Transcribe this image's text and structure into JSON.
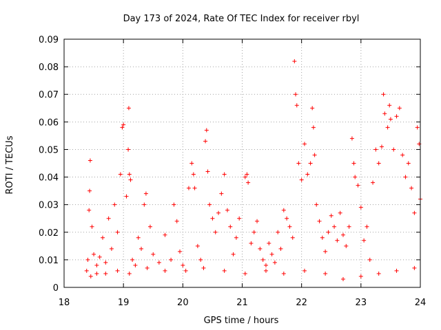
{
  "chart_data": {
    "type": "scatter",
    "title": "Day 173 of 2024, Rate Of TEC Index for receiver rbyl",
    "xlabel": "GPS time / hours",
    "ylabel": "ROTI / TECUs",
    "xlim": [
      18,
      24
    ],
    "ylim": [
      0,
      0.09
    ],
    "xticks": [
      "18",
      "19",
      "20",
      "21",
      "22",
      "23",
      "24"
    ],
    "yticks": [
      "0",
      "0.01",
      "0.02",
      "0.03",
      "0.04",
      "0.05",
      "0.06",
      "0.07",
      "0.08",
      "0.09"
    ],
    "grid": true,
    "marker": "plus",
    "color": "#ff0000",
    "series": [
      {
        "name": "ROTI",
        "points": [
          [
            18.38,
            0.006
          ],
          [
            18.4,
            0.01
          ],
          [
            18.42,
            0.028
          ],
          [
            18.43,
            0.035
          ],
          [
            18.44,
            0.046
          ],
          [
            18.47,
            0.022
          ],
          [
            18.5,
            0.012
          ],
          [
            18.55,
            0.008
          ],
          [
            18.6,
            0.011
          ],
          [
            18.65,
            0.018
          ],
          [
            18.7,
            0.009
          ],
          [
            18.75,
            0.025
          ],
          [
            18.8,
            0.014
          ],
          [
            18.85,
            0.03
          ],
          [
            18.9,
            0.02
          ],
          [
            18.95,
            0.041
          ],
          [
            18.98,
            0.058
          ],
          [
            19.0,
            0.059
          ],
          [
            19.05,
            0.033
          ],
          [
            19.08,
            0.05
          ],
          [
            19.09,
            0.065
          ],
          [
            19.1,
            0.041
          ],
          [
            19.12,
            0.039
          ],
          [
            19.15,
            0.01
          ],
          [
            19.2,
            0.008
          ],
          [
            19.25,
            0.018
          ],
          [
            19.3,
            0.014
          ],
          [
            19.35,
            0.03
          ],
          [
            19.38,
            0.034
          ],
          [
            19.45,
            0.022
          ],
          [
            19.5,
            0.012
          ],
          [
            19.6,
            0.009
          ],
          [
            19.7,
            0.019
          ],
          [
            19.8,
            0.01
          ],
          [
            19.85,
            0.03
          ],
          [
            19.9,
            0.024
          ],
          [
            19.95,
            0.013
          ],
          [
            20.0,
            0.008
          ],
          [
            20.1,
            0.036
          ],
          [
            20.15,
            0.045
          ],
          [
            20.18,
            0.041
          ],
          [
            20.2,
            0.036
          ],
          [
            20.25,
            0.015
          ],
          [
            20.3,
            0.01
          ],
          [
            20.38,
            0.053
          ],
          [
            20.4,
            0.057
          ],
          [
            20.42,
            0.042
          ],
          [
            20.45,
            0.03
          ],
          [
            20.5,
            0.025
          ],
          [
            20.55,
            0.02
          ],
          [
            20.6,
            0.027
          ],
          [
            20.65,
            0.034
          ],
          [
            20.7,
            0.041
          ],
          [
            20.75,
            0.028
          ],
          [
            20.8,
            0.022
          ],
          [
            20.85,
            0.012
          ],
          [
            20.9,
            0.018
          ],
          [
            20.95,
            0.025
          ],
          [
            21.05,
            0.04
          ],
          [
            21.08,
            0.041
          ],
          [
            21.1,
            0.038
          ],
          [
            21.15,
            0.016
          ],
          [
            21.2,
            0.02
          ],
          [
            21.25,
            0.024
          ],
          [
            21.3,
            0.014
          ],
          [
            21.35,
            0.01
          ],
          [
            21.4,
            0.008
          ],
          [
            21.45,
            0.016
          ],
          [
            21.5,
            0.012
          ],
          [
            21.55,
            0.009
          ],
          [
            21.6,
            0.02
          ],
          [
            21.65,
            0.014
          ],
          [
            21.7,
            0.028
          ],
          [
            21.75,
            0.025
          ],
          [
            21.8,
            0.022
          ],
          [
            21.85,
            0.018
          ],
          [
            21.88,
            0.082
          ],
          [
            21.9,
            0.07
          ],
          [
            21.92,
            0.066
          ],
          [
            21.95,
            0.045
          ],
          [
            22.0,
            0.039
          ],
          [
            22.05,
            0.052
          ],
          [
            22.1,
            0.041
          ],
          [
            22.15,
            0.045
          ],
          [
            22.18,
            0.065
          ],
          [
            22.2,
            0.058
          ],
          [
            22.22,
            0.048
          ],
          [
            22.25,
            0.03
          ],
          [
            22.3,
            0.024
          ],
          [
            22.35,
            0.018
          ],
          [
            22.4,
            0.013
          ],
          [
            22.45,
            0.02
          ],
          [
            22.5,
            0.026
          ],
          [
            22.55,
            0.022
          ],
          [
            22.6,
            0.017
          ],
          [
            22.65,
            0.027
          ],
          [
            22.7,
            0.019
          ],
          [
            22.75,
            0.015
          ],
          [
            22.8,
            0.022
          ],
          [
            22.85,
            0.054
          ],
          [
            22.88,
            0.045
          ],
          [
            22.9,
            0.04
          ],
          [
            22.95,
            0.037
          ],
          [
            23.0,
            0.029
          ],
          [
            23.05,
            0.017
          ],
          [
            23.1,
            0.022
          ],
          [
            23.15,
            0.01
          ],
          [
            23.2,
            0.038
          ],
          [
            23.25,
            0.05
          ],
          [
            23.3,
            0.045
          ],
          [
            23.35,
            0.051
          ],
          [
            23.38,
            0.07
          ],
          [
            23.4,
            0.063
          ],
          [
            23.45,
            0.058
          ],
          [
            23.48,
            0.066
          ],
          [
            23.5,
            0.061
          ],
          [
            23.55,
            0.05
          ],
          [
            23.6,
            0.062
          ],
          [
            23.65,
            0.065
          ],
          [
            23.7,
            0.048
          ],
          [
            23.75,
            0.04
          ],
          [
            23.8,
            0.045
          ],
          [
            23.85,
            0.036
          ],
          [
            23.9,
            0.027
          ],
          [
            23.95,
            0.058
          ],
          [
            23.98,
            0.052
          ],
          [
            24.0,
            0.032
          ],
          [
            18.45,
            0.004
          ],
          [
            18.55,
            0.005
          ],
          [
            18.7,
            0.005
          ],
          [
            18.9,
            0.006
          ],
          [
            19.1,
            0.005
          ],
          [
            19.4,
            0.007
          ],
          [
            19.7,
            0.006
          ],
          [
            20.05,
            0.006
          ],
          [
            20.35,
            0.007
          ],
          [
            20.7,
            0.006
          ],
          [
            21.05,
            0.005
          ],
          [
            21.4,
            0.006
          ],
          [
            21.7,
            0.005
          ],
          [
            22.05,
            0.006
          ],
          [
            22.4,
            0.005
          ],
          [
            22.7,
            0.003
          ],
          [
            23.0,
            0.004
          ],
          [
            23.3,
            0.005
          ],
          [
            23.6,
            0.006
          ],
          [
            23.9,
            0.007
          ]
        ]
      }
    ]
  }
}
